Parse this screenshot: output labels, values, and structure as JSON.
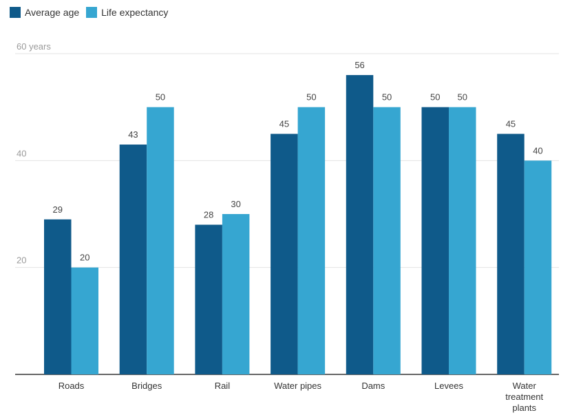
{
  "chart_data": {
    "type": "bar",
    "categories": [
      [
        "Roads"
      ],
      [
        "Bridges"
      ],
      [
        "Rail"
      ],
      [
        "Water pipes"
      ],
      [
        "Dams"
      ],
      [
        "Levees"
      ],
      [
        "Water",
        "treatment",
        "plants"
      ]
    ],
    "series": [
      {
        "name": "Average age",
        "values": [
          29,
          43,
          28,
          45,
          56,
          50,
          45
        ],
        "color": "#0f5a8a"
      },
      {
        "name": "Life expectancy",
        "values": [
          20,
          50,
          30,
          50,
          50,
          50,
          40
        ],
        "color": "#36a6d1"
      }
    ],
    "y_ticks": [
      {
        "value": 20,
        "label": "20"
      },
      {
        "value": 40,
        "label": "40"
      },
      {
        "value": 60,
        "label": "60 years"
      }
    ],
    "ylim": [
      0,
      60
    ],
    "grid": true,
    "legend_position": "top-left"
  }
}
